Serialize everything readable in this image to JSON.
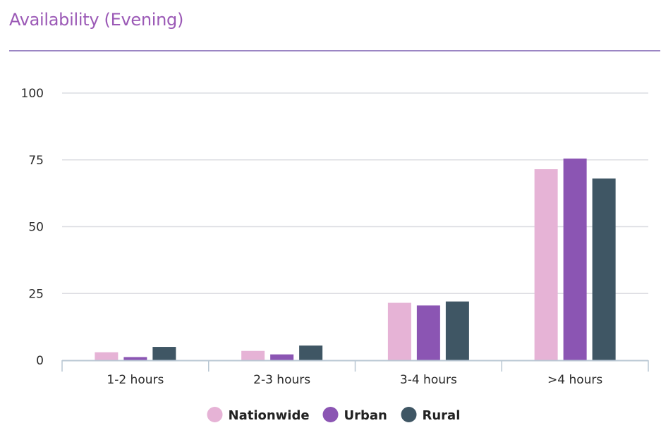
{
  "page": {
    "title": "Availability (Evening)"
  },
  "colors": {
    "title": "#9b59b6",
    "rule": "#9b86c4",
    "grid": "#dcdde2",
    "axis": "#b9c7d3"
  },
  "chart_data": {
    "type": "bar",
    "title": "Availability (Evening)",
    "categories": [
      "1-2 hours",
      "2-3 hours",
      "3-4 hours",
      ">4 hours"
    ],
    "series": [
      {
        "name": "Nationwide",
        "color": "#e6b3d6",
        "values": [
          3,
          3.5,
          21.5,
          71.5
        ]
      },
      {
        "name": "Urban",
        "color": "#8b55b3",
        "values": [
          1.2,
          2.2,
          20.5,
          75.5
        ]
      },
      {
        "name": "Rural",
        "color": "#3f5664",
        "values": [
          5,
          5.5,
          22,
          68
        ]
      }
    ],
    "ylim": [
      0,
      100
    ],
    "yticks": [
      0,
      25,
      50,
      75,
      100
    ],
    "ytick_labels": [
      "0",
      "25",
      "50",
      "75",
      "100"
    ],
    "xlabel": "",
    "ylabel": "",
    "grid": true,
    "legend": "bottom-center"
  }
}
